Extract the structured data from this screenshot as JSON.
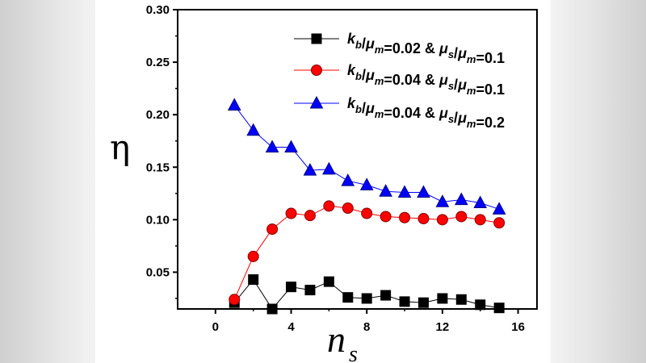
{
  "chart_data": {
    "type": "line",
    "xlabel": "n",
    "xlabel_sub": "s",
    "ylabel": "η",
    "xlim": [
      -2,
      17
    ],
    "ylim": [
      0.015,
      0.3
    ],
    "xticks": [
      0,
      4,
      8,
      12,
      16
    ],
    "yticks": [
      0.05,
      0.1,
      0.15,
      0.2,
      0.25,
      0.3
    ],
    "xtick_labels": [
      "0",
      "4",
      "8",
      "12",
      "16"
    ],
    "ytick_labels": [
      "0.05",
      "0.10",
      "0.15",
      "0.20",
      "0.25",
      "0.30"
    ],
    "grid": false,
    "legend_position": "top-right",
    "x": [
      1,
      2,
      3,
      4,
      5,
      6,
      7,
      8,
      9,
      10,
      11,
      12,
      13,
      14,
      15
    ],
    "series": [
      {
        "name": "k_b/μ_m=0.02 & μ_s/μ_m=0.1",
        "legend_parts": [
          {
            "t": "k",
            "i": true
          },
          {
            "t": "b",
            "sub": true,
            "i": true
          },
          {
            "t": "/",
            "i": false
          },
          {
            "t": "μ",
            "i": true
          },
          {
            "t": "m",
            "sub": true,
            "i": true
          },
          {
            "t": "=0.02 & ",
            "i": false
          },
          {
            "t": "μ",
            "i": true
          },
          {
            "t": "s",
            "sub": true,
            "i": true
          },
          {
            "t": "/",
            "i": false
          },
          {
            "t": "μ",
            "i": true
          },
          {
            "t": "m",
            "sub": true,
            "i": true
          },
          {
            "t": "=0.1",
            "i": false
          }
        ],
        "marker": "square",
        "color": "#000000",
        "values": [
          0.021,
          0.043,
          0.015,
          0.036,
          0.033,
          0.041,
          0.026,
          0.025,
          0.028,
          0.022,
          0.021,
          0.025,
          0.024,
          0.019,
          0.016
        ]
      },
      {
        "name": "k_b/μ_m=0.04 & μ_s/μ_m=0.1",
        "legend_parts": [
          {
            "t": "k",
            "i": true
          },
          {
            "t": "b",
            "sub": true,
            "i": true
          },
          {
            "t": "/",
            "i": false
          },
          {
            "t": "μ",
            "i": true
          },
          {
            "t": "m",
            "sub": true,
            "i": true
          },
          {
            "t": "=0.04 & ",
            "i": false
          },
          {
            "t": "μ",
            "i": true
          },
          {
            "t": "s",
            "sub": true,
            "i": true
          },
          {
            "t": "/",
            "i": false
          },
          {
            "t": "μ",
            "i": true
          },
          {
            "t": "m",
            "sub": true,
            "i": true
          },
          {
            "t": "=0.1",
            "i": false
          }
        ],
        "marker": "circle",
        "color": "#ff0000",
        "values": [
          0.024,
          0.065,
          0.091,
          0.106,
          0.104,
          0.113,
          0.111,
          0.106,
          0.103,
          0.102,
          0.101,
          0.1,
          0.103,
          0.1,
          0.097
        ]
      },
      {
        "name": "k_b/μ_m=0.04 & μ_s/μ_m=0.2",
        "legend_parts": [
          {
            "t": "k",
            "i": true
          },
          {
            "t": "b",
            "sub": true,
            "i": true
          },
          {
            "t": "/",
            "i": false
          },
          {
            "t": "μ",
            "i": true
          },
          {
            "t": "m",
            "sub": true,
            "i": true
          },
          {
            "t": "=0.04 & ",
            "i": false
          },
          {
            "t": "μ",
            "i": true
          },
          {
            "t": "s",
            "sub": true,
            "i": true
          },
          {
            "t": "/",
            "i": false
          },
          {
            "t": "μ",
            "i": true
          },
          {
            "t": "m",
            "sub": true,
            "i": true
          },
          {
            "t": "=0.2",
            "i": false
          }
        ],
        "marker": "triangle",
        "color": "#0000ff",
        "values": [
          0.209,
          0.185,
          0.169,
          0.169,
          0.147,
          0.148,
          0.137,
          0.133,
          0.127,
          0.126,
          0.126,
          0.117,
          0.119,
          0.116,
          0.11
        ]
      }
    ]
  }
}
